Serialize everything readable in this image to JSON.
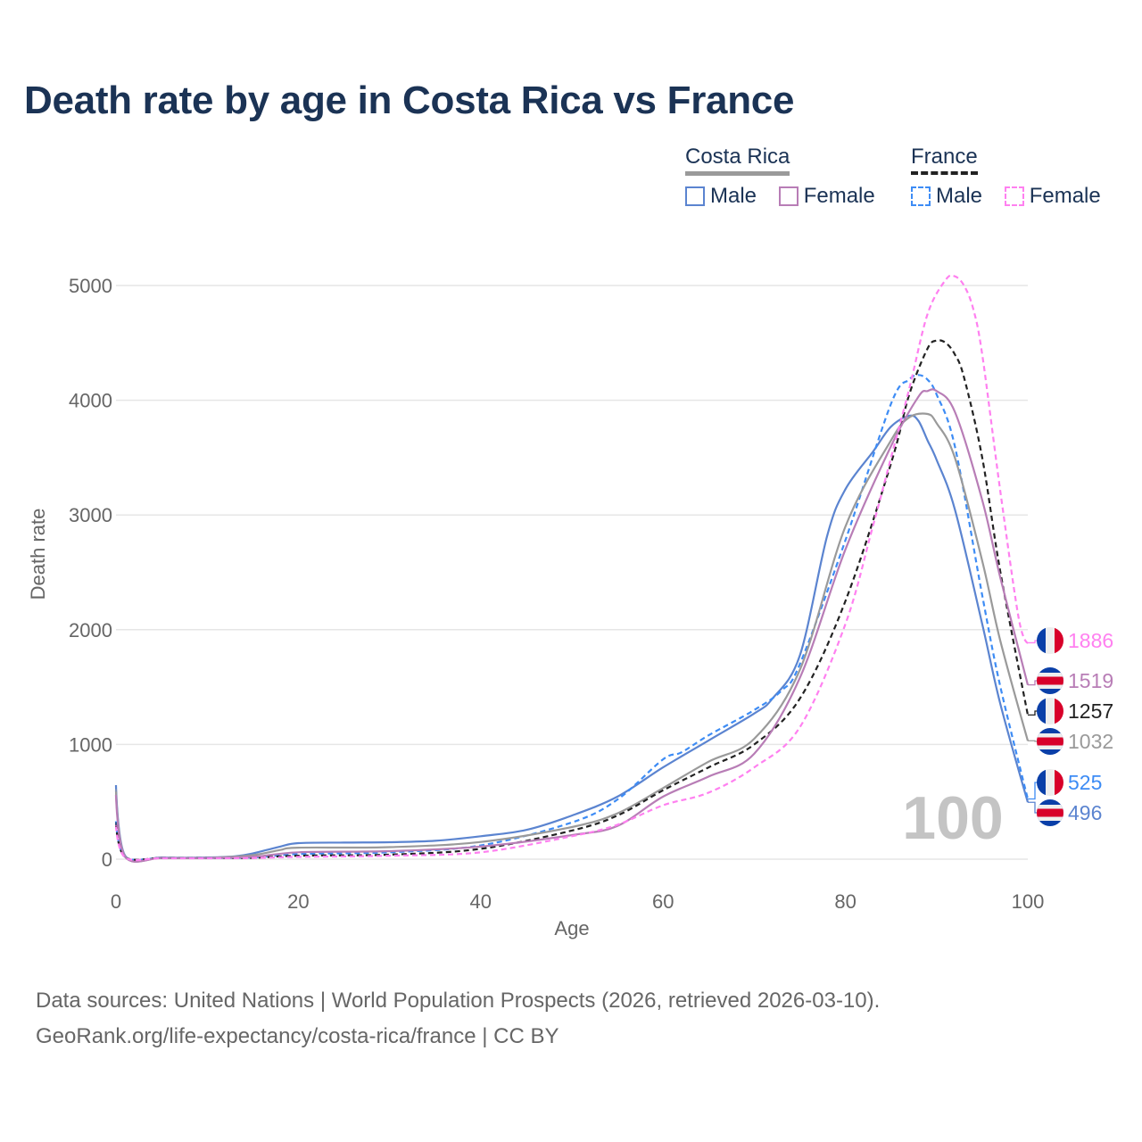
{
  "title": "Death rate by age in Costa Rica vs France",
  "legend": {
    "groups": [
      {
        "name": "Costa Rica",
        "line_color": "#9a9a9a",
        "dashed": false,
        "items": [
          {
            "label": "Male",
            "color": "#5b84d0"
          },
          {
            "label": "Female",
            "color": "#b87db6"
          }
        ]
      },
      {
        "name": "France",
        "line_color": "#222222",
        "dashed": true,
        "items": [
          {
            "label": "Male",
            "color": "#3d8cf5"
          },
          {
            "label": "Female",
            "color": "#ff80f0"
          }
        ]
      }
    ]
  },
  "age_indicator": "100",
  "footer": {
    "line1": "Data sources: United Nations | World Population Prospects (2026, retrieved 2026-03-10).",
    "line2": "GeoRank.org/life-expectancy/costa-rica/france | CC BY"
  },
  "chart_data": {
    "type": "line",
    "title": "Death rate by age in Costa Rica vs France",
    "xlabel": "Age",
    "ylabel": "Death rate",
    "xlim": [
      0,
      100
    ],
    "ylim": [
      0,
      5000
    ],
    "xticks": [
      0,
      20,
      40,
      60,
      80,
      100
    ],
    "yticks": [
      0,
      1000,
      2000,
      3000,
      4000,
      5000
    ],
    "grid": true,
    "series": [
      {
        "name": "Costa Rica Male",
        "country": "costa-rica",
        "color": "#5b84d0",
        "dashed": false,
        "end_label": "496",
        "x": [
          0,
          1,
          5,
          10,
          13,
          15,
          18,
          20,
          25,
          30,
          35,
          40,
          45,
          50,
          55,
          60,
          65,
          70,
          72,
          75,
          78,
          80,
          83,
          85,
          87,
          88,
          89,
          90,
          92,
          95,
          97,
          100
        ],
        "y": [
          645,
          30,
          15,
          15,
          25,
          50,
          110,
          140,
          145,
          148,
          160,
          200,
          255,
          380,
          545,
          800,
          1035,
          1270,
          1400,
          1775,
          2820,
          3225,
          3550,
          3770,
          3865,
          3820,
          3650,
          3480,
          3050,
          2050,
          1350,
          496
        ]
      },
      {
        "name": "France Male",
        "country": "france",
        "color": "#3d8cf5",
        "dashed": true,
        "end_label": "525",
        "x": [
          0,
          1,
          5,
          10,
          15,
          20,
          30,
          40,
          50,
          55,
          60,
          62,
          65,
          70,
          73,
          75,
          80,
          85,
          87,
          88,
          89,
          90,
          92,
          95,
          97,
          100
        ],
        "y": [
          330,
          20,
          10,
          10,
          15,
          45,
          60,
          120,
          320,
          520,
          870,
          930,
          1080,
          1300,
          1470,
          1700,
          2780,
          3970,
          4180,
          4220,
          4180,
          4050,
          3600,
          2300,
          1500,
          525
        ]
      },
      {
        "name": "Costa Rica Total",
        "country": "costa-rica",
        "color": "#9a9a9a",
        "dashed": false,
        "end_label": "1032",
        "x": [
          0,
          1,
          5,
          10,
          15,
          18,
          20,
          30,
          40,
          50,
          55,
          60,
          65,
          70,
          75,
          80,
          85,
          87,
          89,
          90,
          92,
          95,
          97,
          100
        ],
        "y": [
          600,
          25,
          12,
          12,
          35,
          80,
          100,
          105,
          150,
          280,
          400,
          620,
          850,
          1050,
          1650,
          2900,
          3650,
          3850,
          3880,
          3800,
          3500,
          2600,
          1900,
          1032
        ]
      },
      {
        "name": "France Total",
        "country": "france",
        "color": "#222222",
        "dashed": true,
        "end_label": "1257",
        "x": [
          0,
          1,
          5,
          10,
          15,
          20,
          30,
          40,
          50,
          55,
          60,
          65,
          70,
          75,
          80,
          85,
          87,
          89,
          90,
          91,
          92,
          93,
          95,
          97,
          100
        ],
        "y": [
          310,
          18,
          10,
          10,
          12,
          30,
          40,
          90,
          250,
          380,
          600,
          800,
          1000,
          1400,
          2250,
          3450,
          4050,
          4450,
          4520,
          4500,
          4400,
          4200,
          3500,
          2500,
          1257
        ]
      },
      {
        "name": "Costa Rica Female",
        "country": "costa-rica",
        "color": "#b87db6",
        "dashed": false,
        "end_label": "1519",
        "x": [
          0,
          1,
          5,
          10,
          15,
          20,
          30,
          40,
          50,
          55,
          60,
          65,
          70,
          75,
          80,
          85,
          88,
          89,
          90,
          92,
          95,
          97,
          100
        ],
        "y": [
          560,
          22,
          10,
          10,
          20,
          60,
          70,
          110,
          210,
          290,
          545,
          720,
          920,
          1580,
          2700,
          3600,
          4030,
          4080,
          4080,
          3900,
          3130,
          2450,
          1519
        ]
      },
      {
        "name": "France Female",
        "country": "france",
        "color": "#ff80f0",
        "dashed": true,
        "end_label": "1886",
        "x": [
          0,
          1,
          5,
          10,
          15,
          20,
          30,
          40,
          50,
          55,
          60,
          65,
          70,
          75,
          80,
          83,
          85,
          87,
          89,
          91,
          92,
          93,
          94,
          95,
          97,
          99,
          100
        ],
        "y": [
          290,
          15,
          8,
          8,
          10,
          20,
          30,
          60,
          200,
          300,
          470,
          580,
          800,
          1150,
          2050,
          2900,
          3500,
          4100,
          4750,
          5050,
          5080,
          5000,
          4800,
          4400,
          3200,
          2100,
          1886
        ]
      }
    ]
  }
}
